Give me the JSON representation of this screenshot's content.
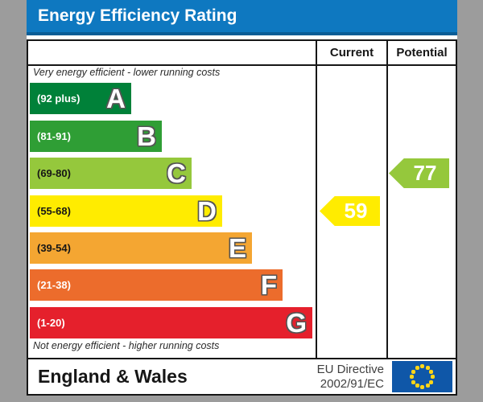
{
  "title": "Energy Efficiency Rating",
  "columns": {
    "current": "Current",
    "potential": "Potential"
  },
  "captions": {
    "top": "Very energy efficient - lower running costs",
    "bottom": "Not energy efficient - higher running costs"
  },
  "bands": [
    {
      "letter": "A",
      "range": "(92 plus)",
      "color": "#008139",
      "text_color": "#ffffff"
    },
    {
      "letter": "B",
      "range": "(81-91)",
      "color": "#2f9e35",
      "text_color": "#ffffff"
    },
    {
      "letter": "C",
      "range": "(69-80)",
      "color": "#95c83c",
      "text_color": "#161616"
    },
    {
      "letter": "D",
      "range": "(55-68)",
      "color": "#ffec00",
      "text_color": "#161616"
    },
    {
      "letter": "E",
      "range": "(39-54)",
      "color": "#f4a632",
      "text_color": "#161616"
    },
    {
      "letter": "F",
      "range": "(21-38)",
      "color": "#ec6c2c",
      "text_color": "#ffffff"
    },
    {
      "letter": "G",
      "range": "(1-20)",
      "color": "#e5202c",
      "text_color": "#ffffff"
    }
  ],
  "ratings": {
    "current": {
      "value": "59",
      "color": "#ffec00",
      "band_index": 3
    },
    "potential": {
      "value": "77",
      "color": "#95c83c",
      "band_index": 2
    }
  },
  "footer": {
    "region": "England & Wales",
    "directive_line1": "EU Directive",
    "directive_line2": "2002/91/EC",
    "eu_flag_color": "#0f57a8",
    "eu_star_color": "#ffd617"
  },
  "chart_data": {
    "type": "bar",
    "title": "Energy Efficiency Rating",
    "categories": [
      "A",
      "B",
      "C",
      "D",
      "E",
      "F",
      "G"
    ],
    "band_ranges": [
      "92 plus",
      "81-91",
      "69-80",
      "55-68",
      "39-54",
      "21-38",
      "1-20"
    ],
    "band_colors": [
      "#008139",
      "#2f9e35",
      "#95c83c",
      "#ffec00",
      "#f4a632",
      "#ec6c2c",
      "#e5202c"
    ],
    "markers": [
      {
        "name": "Current",
        "value": 59,
        "band": "D",
        "color": "#ffec00"
      },
      {
        "name": "Potential",
        "value": 77,
        "band": "C",
        "color": "#95c83c"
      }
    ],
    "annotations": [
      "Very energy efficient - lower running costs",
      "Not energy efficient - higher running costs"
    ],
    "footer_left": "England & Wales",
    "footer_right": "EU Directive 2002/91/EC",
    "legend_position": "none",
    "grid": false
  }
}
